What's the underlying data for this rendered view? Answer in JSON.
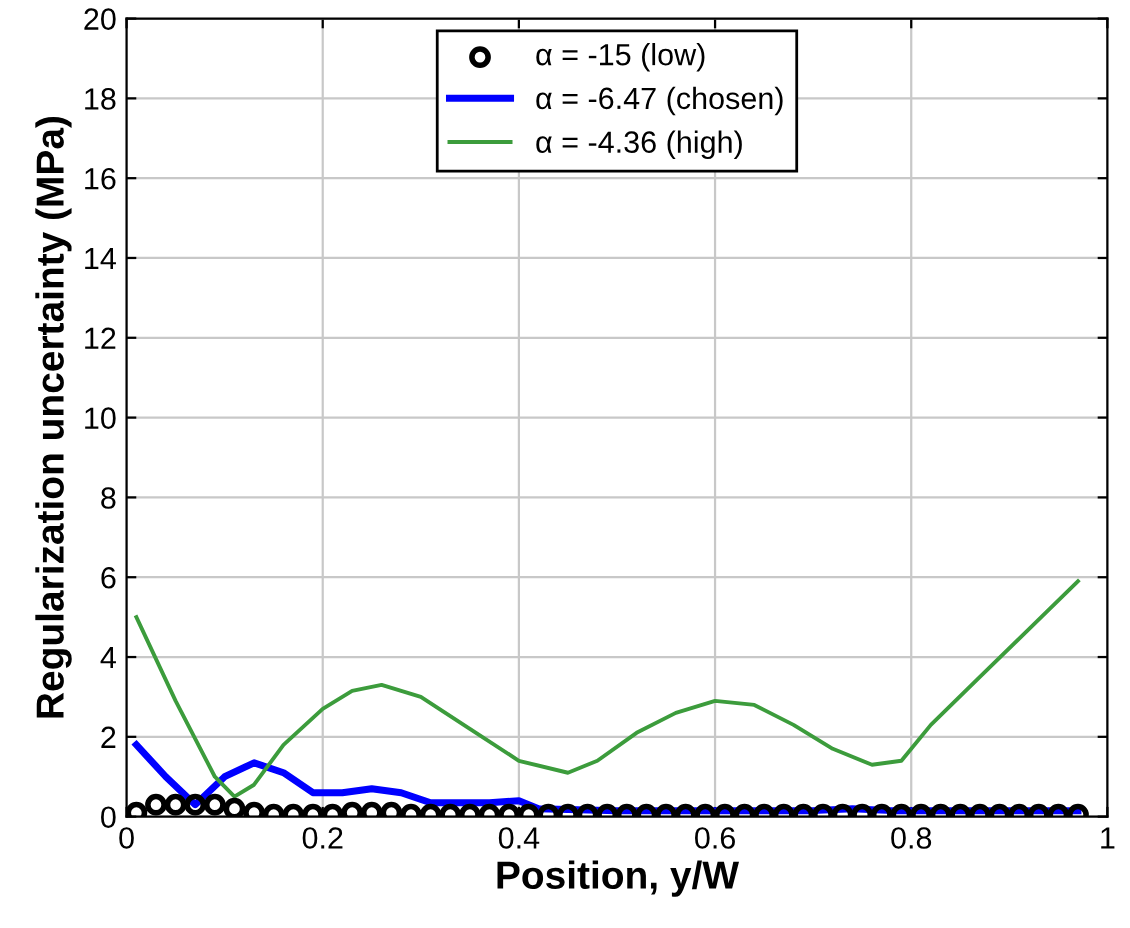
{
  "chart_data": {
    "type": "line",
    "xlabel": "Position, y/W",
    "ylabel": "Regularization uncertainty (MPa)",
    "xlim": [
      0,
      1
    ],
    "ylim": [
      0,
      20
    ],
    "xticks": [
      0,
      0.2,
      0.4,
      0.6,
      0.8,
      1
    ],
    "yticks": [
      0,
      2,
      4,
      6,
      8,
      10,
      12,
      14,
      16,
      18,
      20
    ],
    "grid": true,
    "legend": "top",
    "series": [
      {
        "name": "α = -15 (low)",
        "color": "#000000",
        "type": "scatter",
        "marker": "circle",
        "x": [
          0.01,
          0.03,
          0.05,
          0.07,
          0.09,
          0.11,
          0.13,
          0.15,
          0.17,
          0.19,
          0.21,
          0.23,
          0.25,
          0.27,
          0.29,
          0.31,
          0.33,
          0.35,
          0.37,
          0.39,
          0.41,
          0.43,
          0.45,
          0.47,
          0.49,
          0.51,
          0.53,
          0.55,
          0.57,
          0.59,
          0.61,
          0.63,
          0.65,
          0.67,
          0.69,
          0.71,
          0.73,
          0.75,
          0.77,
          0.79,
          0.81,
          0.83,
          0.85,
          0.87,
          0.89,
          0.91,
          0.93,
          0.95,
          0.97
        ],
        "values": [
          0.1,
          0.3,
          0.3,
          0.3,
          0.3,
          0.2,
          0.1,
          0.05,
          0.05,
          0.05,
          0.05,
          0.1,
          0.1,
          0.1,
          0.05,
          0.05,
          0.05,
          0.05,
          0.05,
          0.05,
          0.05,
          0.05,
          0.05,
          0.05,
          0.05,
          0.05,
          0.05,
          0.05,
          0.05,
          0.05,
          0.05,
          0.05,
          0.05,
          0.05,
          0.05,
          0.05,
          0.05,
          0.05,
          0.05,
          0.05,
          0.05,
          0.05,
          0.05,
          0.05,
          0.05,
          0.05,
          0.05,
          0.05,
          0.05
        ]
      },
      {
        "name": "α = -6.47 (chosen)",
        "color": "#0000ff",
        "x": [
          0.01,
          0.04,
          0.07,
          0.1,
          0.13,
          0.16,
          0.19,
          0.22,
          0.25,
          0.28,
          0.31,
          0.34,
          0.37,
          0.4,
          0.42,
          0.5,
          0.6,
          0.7,
          0.74,
          0.78,
          0.85,
          0.97
        ],
        "values": [
          1.8,
          1.0,
          0.3,
          1.0,
          1.35,
          1.1,
          0.6,
          0.6,
          0.7,
          0.6,
          0.35,
          0.35,
          0.35,
          0.4,
          0.2,
          0.15,
          0.15,
          0.15,
          0.2,
          0.15,
          0.15,
          0.15
        ]
      },
      {
        "name": "α = -4.36 (high)",
        "color": "#3c9c3c",
        "x": [
          0.01,
          0.05,
          0.09,
          0.11,
          0.13,
          0.16,
          0.2,
          0.23,
          0.26,
          0.3,
          0.35,
          0.4,
          0.45,
          0.48,
          0.52,
          0.56,
          0.6,
          0.64,
          0.68,
          0.72,
          0.76,
          0.79,
          0.82,
          0.87,
          0.92,
          0.97
        ],
        "values": [
          5.0,
          2.9,
          1.0,
          0.5,
          0.8,
          1.8,
          2.7,
          3.15,
          3.3,
          3.0,
          2.2,
          1.4,
          1.1,
          1.4,
          2.1,
          2.6,
          2.9,
          2.8,
          2.3,
          1.7,
          1.3,
          1.4,
          2.3,
          3.5,
          4.7,
          5.9
        ]
      }
    ]
  }
}
